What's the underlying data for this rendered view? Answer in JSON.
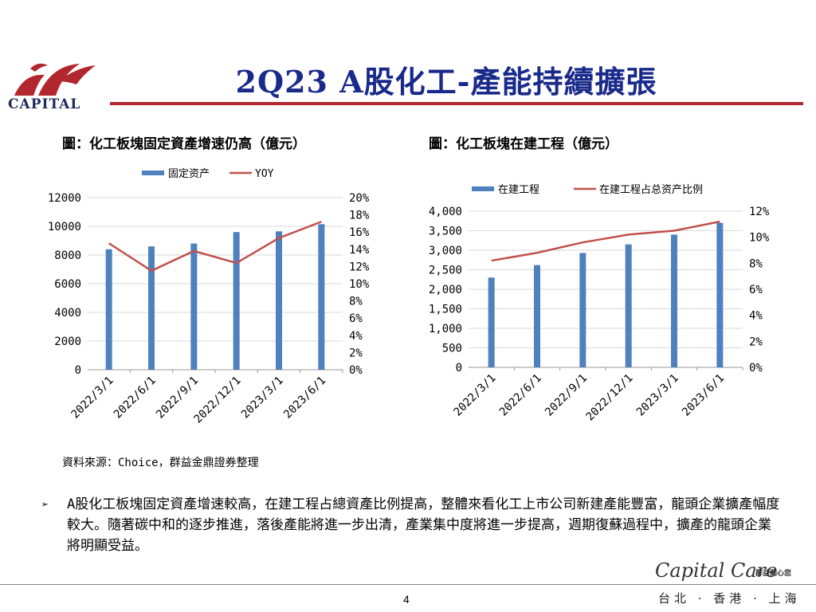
{
  "header": {
    "logo_text": "CAPITAL",
    "title": "2Q23 A股化工-產能持續擴張",
    "colors": {
      "title": "#1a2a8a",
      "rule": "#b2262d",
      "logo": "#b2262d",
      "bar": "#4f81bd",
      "line": "#c0504d"
    }
  },
  "charts": {
    "left_caption": "圖：化工板塊固定資產增速仍高（億元）",
    "right_caption": "圖：化工板塊在建工程（億元）"
  },
  "chart_data": [
    {
      "type": "bar",
      "categories": [
        "2022/3/1",
        "2022/6/1",
        "2022/9/1",
        "2022/12/1",
        "2023/3/1",
        "2023/6/1"
      ],
      "series": [
        {
          "name": "固定资产",
          "type": "bar",
          "axis": "left",
          "values": [
            8400,
            8600,
            8800,
            9600,
            9650,
            10150
          ]
        },
        {
          "name": "YOY",
          "type": "line",
          "axis": "right",
          "values": [
            0.147,
            0.115,
            0.138,
            0.124,
            0.153,
            0.172
          ]
        }
      ],
      "y_left": {
        "min": 0,
        "max": 12000,
        "ticks": [
          "0",
          "2000",
          "4000",
          "6000",
          "8000",
          "10000",
          "12000"
        ]
      },
      "y_right": {
        "min": 0,
        "max": 0.2,
        "ticks": [
          "0%",
          "2%",
          "4%",
          "6%",
          "8%",
          "10%",
          "12%",
          "14%",
          "16%",
          "18%",
          "20%"
        ]
      },
      "legend": "top-center",
      "grid": true
    },
    {
      "type": "bar",
      "categories": [
        "2022/3/1",
        "2022/6/1",
        "2022/9/1",
        "2022/12/1",
        "2023/3/1",
        "2023/6/1"
      ],
      "series": [
        {
          "name": "在建工程",
          "type": "bar",
          "axis": "left",
          "values": [
            2300,
            2620,
            2930,
            3150,
            3400,
            3700
          ]
        },
        {
          "name": "在建工程占总资产比例",
          "type": "line",
          "axis": "right",
          "values": [
            0.082,
            0.088,
            0.096,
            0.102,
            0.105,
            0.112
          ]
        }
      ],
      "y_left": {
        "min": 0,
        "max": 4000,
        "ticks": [
          "0",
          "500",
          "1,000",
          "1,500",
          "2,000",
          "2,500",
          "3,000",
          "3,500",
          "4,000"
        ]
      },
      "y_right": {
        "min": 0,
        "max": 0.12,
        "ticks": [
          "0%",
          "2%",
          "4%",
          "6%",
          "8%",
          "10%",
          "12%"
        ]
      },
      "legend": "top-center",
      "grid": true
    }
  ],
  "source": "資料來源：Choice，群益金鼎證券整理",
  "bullet": "A股化工板塊固定資產增速較高，在建工程占總資產比例提高，整體來看化工上市公司新建產能豐富，龍頭企業擴產幅度較大。隨著碳中和的逐步推進，落後產能將進一步出清，產業集中度將進一步提高，週期復蘇過程中，擴產的龍頭企業將明顯受益。",
  "footer": {
    "brand": "Capital Care",
    "brand_sub": "群益關心您",
    "cities": "台北 · 香港 · 上海",
    "page_number": "4"
  }
}
